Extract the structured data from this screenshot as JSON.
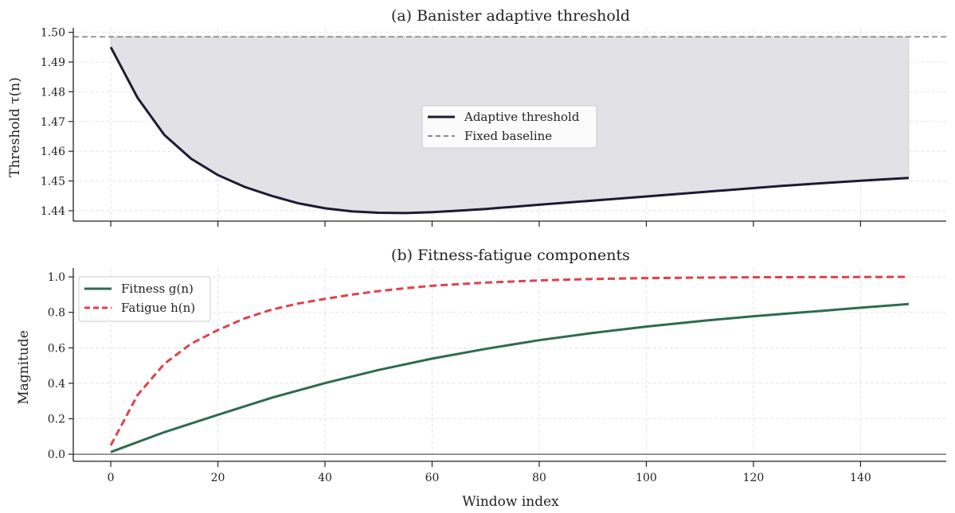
{
  "chart_data": [
    {
      "type": "line",
      "title": "(a) Banister adaptive threshold",
      "ylabel": "Threshold τ(n)",
      "xlabel": "",
      "xlim": [
        -7,
        156
      ],
      "ylim": [
        1.4365,
        1.5015
      ],
      "yticks": [
        "1.44",
        "1.45",
        "1.46",
        "1.47",
        "1.48",
        "1.49",
        "1.50"
      ],
      "xticks": [
        0,
        20,
        40,
        60,
        80,
        100,
        120,
        140
      ],
      "grid": true,
      "legend_position": "center",
      "series": [
        {
          "name": "Adaptive threshold",
          "color": "#1f1a33",
          "style": "solid",
          "x": [
            0,
            5,
            10,
            15,
            20,
            25,
            30,
            35,
            40,
            45,
            50,
            55,
            60,
            65,
            70,
            75,
            80,
            85,
            90,
            95,
            100,
            105,
            110,
            115,
            120,
            125,
            130,
            135,
            140,
            145,
            149
          ],
          "y": [
            1.495,
            1.478,
            1.4655,
            1.4575,
            1.452,
            1.448,
            1.445,
            1.4425,
            1.4408,
            1.4398,
            1.4393,
            1.4392,
            1.4395,
            1.44,
            1.4406,
            1.4413,
            1.442,
            1.4427,
            1.4434,
            1.4441,
            1.4448,
            1.4455,
            1.4462,
            1.4469,
            1.4476,
            1.4483,
            1.4489,
            1.4495,
            1.4501,
            1.4506,
            1.451
          ]
        },
        {
          "name": "Fixed baseline",
          "color": "#8a8a8a",
          "style": "dashed",
          "y": 1.4985
        }
      ],
      "fill_between": {
        "lower": "Adaptive threshold",
        "upper": "Fixed baseline",
        "color": "#e2e2e6"
      }
    },
    {
      "type": "line",
      "title": "(b) Fitness-fatigue components",
      "ylabel": "Magnitude",
      "xlabel": "Window index",
      "xlim": [
        -7,
        156
      ],
      "ylim": [
        -0.04,
        1.05
      ],
      "yticks": [
        "0.0",
        "0.2",
        "0.4",
        "0.6",
        "0.8",
        "1.0"
      ],
      "xticks": [
        0,
        20,
        40,
        60,
        80,
        100,
        120,
        140
      ],
      "grid": true,
      "legend_position": "upper-left",
      "hline": 0,
      "series": [
        {
          "name": "Fitness g(n)",
          "color": "#2e6b4f",
          "style": "solid",
          "x": [
            0,
            10,
            20,
            30,
            40,
            50,
            60,
            70,
            80,
            90,
            100,
            110,
            120,
            130,
            140,
            149
          ],
          "y": [
            0.0125,
            0.124,
            0.222,
            0.318,
            0.401,
            0.475,
            0.539,
            0.594,
            0.643,
            0.684,
            0.72,
            0.751,
            0.778,
            0.802,
            0.826,
            0.847
          ]
        },
        {
          "name": "Fatigue h(n)",
          "color": "#e0414c",
          "style": "dashed",
          "x": [
            0,
            5,
            10,
            15,
            20,
            25,
            30,
            35,
            40,
            45,
            50,
            55,
            60,
            70,
            80,
            90,
            100,
            110,
            120,
            130,
            140,
            149
          ],
          "y": [
            0.05,
            0.334,
            0.51,
            0.623,
            0.7,
            0.766,
            0.815,
            0.85,
            0.876,
            0.9,
            0.92,
            0.936,
            0.95,
            0.968,
            0.98,
            0.988,
            0.993,
            0.996,
            0.998,
            0.999,
            0.9995,
            1.0
          ]
        }
      ]
    }
  ]
}
